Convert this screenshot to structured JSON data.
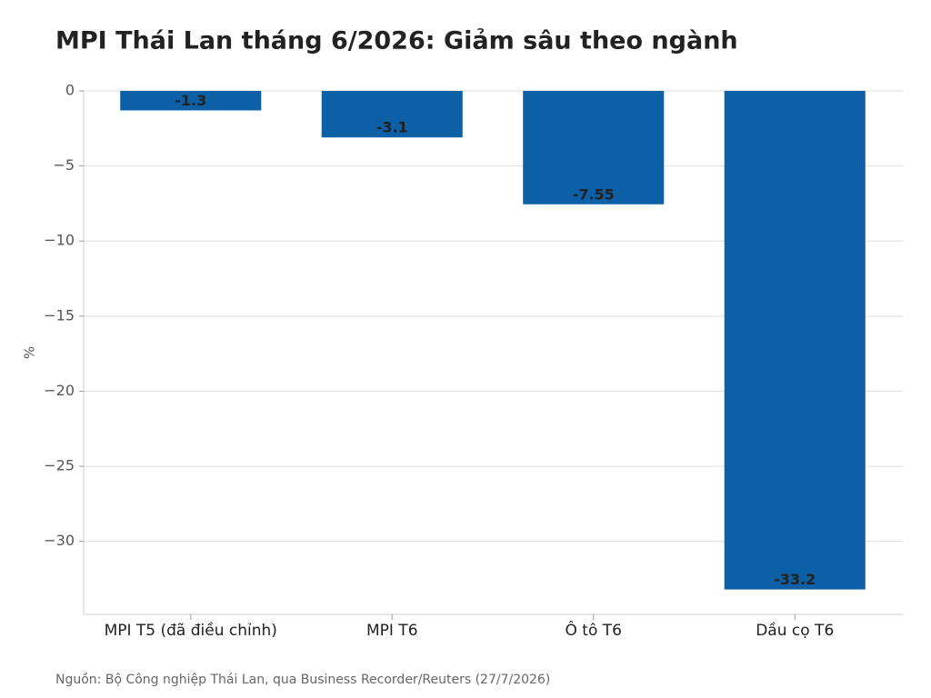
{
  "chart_data": {
    "type": "bar",
    "title": "MPI Thái Lan tháng 6/2026: Giảm sâu theo ngành",
    "y_label": "%",
    "source": "Nguồn: Bộ Công nghiệp Thái Lan, qua Business Recorder/Reuters (27/7/2026)",
    "categories": [
      "MPI T5 (đã điều chỉnh)",
      "MPI T6",
      "Ô tô T6",
      "Dầu cọ T6"
    ],
    "values": [
      -1.3,
      -3.1,
      -7.55,
      -33.2
    ],
    "color": "#0d5fa6",
    "ylim": [
      -34.86,
      0
    ],
    "yticks": [
      0,
      {
        "value": -5,
        "label": "−5"
      },
      {
        "value": -10,
        "label": "−10"
      },
      {
        "value": -15,
        "label": "−15"
      },
      {
        "value": -20,
        "label": "−20"
      },
      {
        "value": -25,
        "label": "−25"
      },
      {
        "value": -30,
        "label": "−30"
      }
    ],
    "grid": true
  }
}
